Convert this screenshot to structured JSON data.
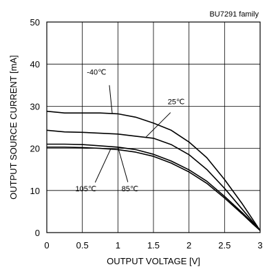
{
  "chart_data": {
    "type": "line",
    "title": "",
    "annotation_top_right": "BU7291 family",
    "xlabel": "OUTPUT VOLTAGE [V]",
    "ylabel": "OUTPUT SOURCE CURRENT [mA]",
    "xlim": [
      0,
      3
    ],
    "ylim": [
      0,
      50
    ],
    "xticks": [
      "0",
      "0.5",
      "1",
      "1.5",
      "2",
      "2.5",
      "3"
    ],
    "yticks": [
      "0",
      "10",
      "20",
      "30",
      "40",
      "50"
    ],
    "grid": true,
    "series": [
      {
        "name": "-40℃",
        "x": [
          0,
          0.25,
          0.5,
          0.75,
          1.0,
          1.25,
          1.5,
          1.75,
          2.0,
          2.25,
          2.5,
          2.75,
          2.9,
          3.0
        ],
        "y": [
          28.8,
          28.4,
          28.4,
          28.4,
          28.2,
          27.4,
          26.0,
          24.3,
          21.5,
          17.8,
          12.6,
          6.8,
          3.0,
          0.5
        ]
      },
      {
        "name": "25℃",
        "x": [
          0,
          0.25,
          0.5,
          0.75,
          1.0,
          1.25,
          1.5,
          1.75,
          2.0,
          2.25,
          2.5,
          2.75,
          2.9,
          3.0
        ],
        "y": [
          24.3,
          23.9,
          23.8,
          23.6,
          23.4,
          22.9,
          22.4,
          20.9,
          18.5,
          15.0,
          10.5,
          5.5,
          2.5,
          0.5
        ]
      },
      {
        "name": "85℃",
        "x": [
          0,
          0.25,
          0.5,
          0.75,
          1.0,
          1.25,
          1.5,
          1.75,
          2.0,
          2.25,
          2.5,
          2.75,
          2.9,
          3.0
        ],
        "y": [
          21.0,
          21.0,
          20.9,
          20.6,
          20.3,
          19.7,
          18.6,
          17.0,
          14.9,
          12.2,
          8.6,
          4.7,
          2.2,
          0.5
        ]
      },
      {
        "name": "105℃",
        "x": [
          0,
          0.25,
          0.5,
          0.75,
          1.0,
          1.25,
          1.5,
          1.75,
          2.0,
          2.25,
          2.5,
          2.75,
          2.9,
          3.0
        ],
        "y": [
          20.3,
          20.3,
          20.2,
          20.0,
          19.7,
          19.1,
          18.1,
          16.5,
          14.4,
          11.7,
          8.2,
          4.4,
          2.0,
          0.5
        ]
      }
    ]
  }
}
